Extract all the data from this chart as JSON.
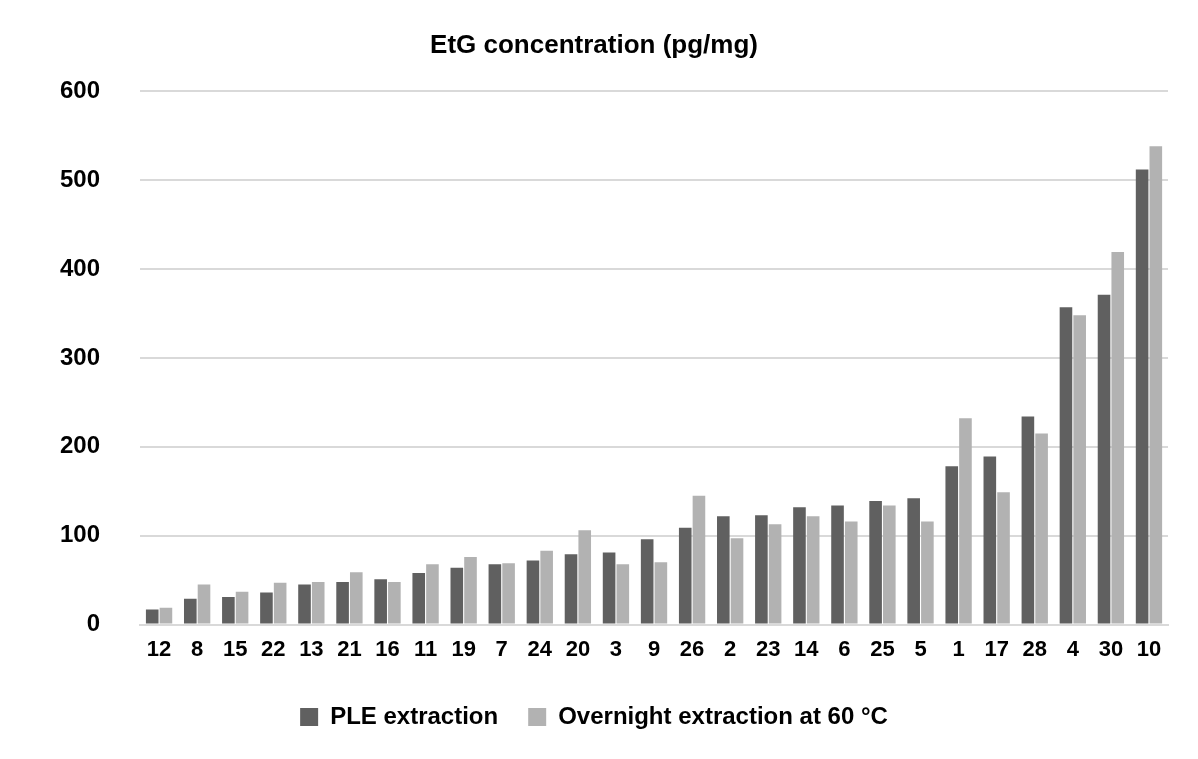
{
  "chart_data": {
    "type": "bar",
    "title": "EtG concentration (pg/mg)",
    "categories": [
      "12",
      "8",
      "15",
      "22",
      "13",
      "21",
      "16",
      "11",
      "19",
      "7",
      "24",
      "20",
      "3",
      "9",
      "26",
      "2",
      "23",
      "14",
      "6",
      "25",
      "5",
      "1",
      "17",
      "28",
      "4",
      "30",
      "10"
    ],
    "series": [
      {
        "name": "PLE extraction",
        "color": "#606060",
        "values": [
          17,
          29,
          31,
          36,
          45,
          48,
          51,
          58,
          64,
          68,
          72,
          79,
          81,
          96,
          109,
          122,
          123,
          132,
          134,
          139,
          142,
          178,
          189,
          234,
          357,
          371,
          512
        ]
      },
      {
        "name": "Overnight extraction at 60 °C",
        "color": "#b2b2b2",
        "values": [
          19,
          45,
          37,
          47,
          48,
          59,
          48,
          68,
          76,
          69,
          83,
          106,
          68,
          70,
          145,
          97,
          113,
          122,
          116,
          134,
          116,
          232,
          149,
          215,
          348,
          419,
          538
        ]
      }
    ],
    "ylim": [
      0,
      600
    ],
    "yticks": [
      0,
      100,
      200,
      300,
      400,
      500,
      600
    ],
    "grid": "y",
    "legend": "bottom"
  }
}
